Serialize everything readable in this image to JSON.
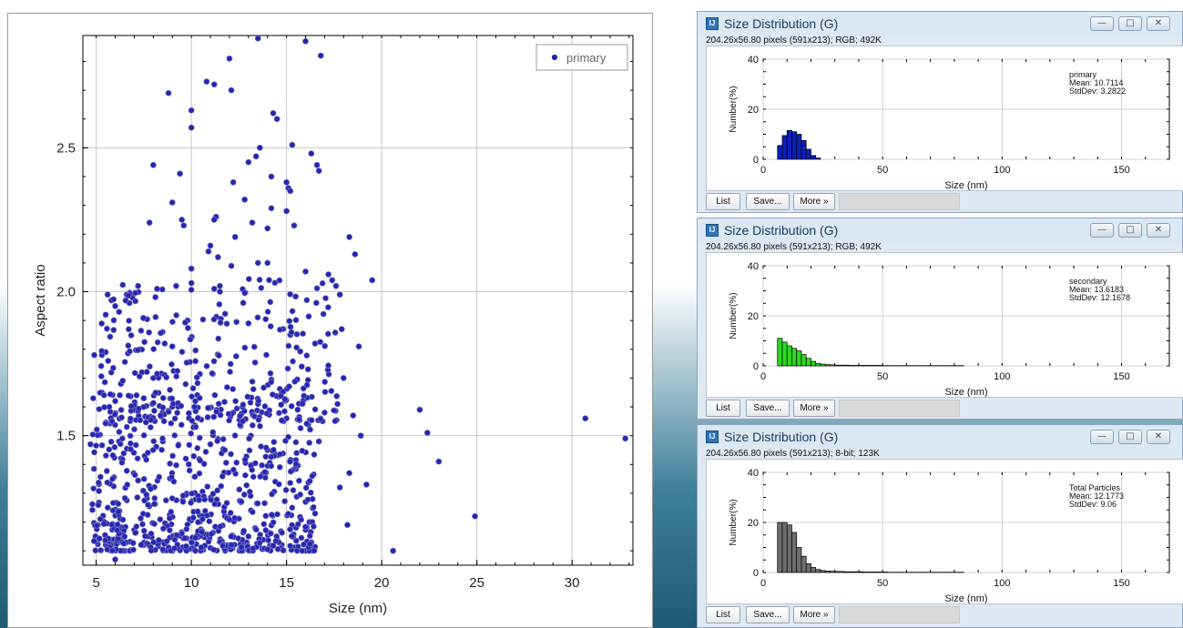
{
  "scatter": {
    "chart_data": {
      "type": "scatter",
      "title": "",
      "xlabel": "Size (nm)",
      "ylabel": "Aspect ratio",
      "xlim": [
        4.3,
        33.2
      ],
      "ylim": [
        1.05,
        2.89
      ],
      "x_ticks": [
        "5",
        "10",
        "15",
        "20",
        "25",
        "30"
      ],
      "x_tick_values": [
        5,
        10,
        15,
        20,
        25,
        30
      ],
      "y_ticks": [
        "1.5",
        "2.0",
        "2.5"
      ],
      "y_tick_values": [
        1.5,
        2.0,
        2.5
      ],
      "grid": true,
      "legend_position": "top-right",
      "series": [
        {
          "name": "primary",
          "color": "#2727b0",
          "points": [
            [
              13.5,
              2.88
            ],
            [
              16.0,
              2.87
            ],
            [
              16.8,
              2.82
            ],
            [
              12.0,
              2.81
            ],
            [
              11.2,
              2.72
            ],
            [
              10.8,
              2.73
            ],
            [
              12.1,
              2.7
            ],
            [
              8.8,
              2.69
            ],
            [
              14.3,
              2.62
            ],
            [
              14.5,
              2.6
            ],
            [
              10.0,
              2.63
            ],
            [
              10.0,
              2.57
            ],
            [
              15.3,
              2.51
            ],
            [
              13.6,
              2.5
            ],
            [
              16.3,
              2.48
            ],
            [
              13.4,
              2.47
            ],
            [
              13.0,
              2.45
            ],
            [
              8.0,
              2.44
            ],
            [
              16.6,
              2.44
            ],
            [
              16.7,
              2.42
            ],
            [
              9.4,
              2.41
            ],
            [
              14.2,
              2.4
            ],
            [
              12.2,
              2.38
            ],
            [
              15.0,
              2.38
            ],
            [
              15.1,
              2.36
            ],
            [
              15.2,
              2.35
            ],
            [
              12.8,
              2.32
            ],
            [
              9.0,
              2.31
            ],
            [
              14.2,
              2.29
            ],
            [
              15.0,
              2.28
            ],
            [
              11.3,
              2.26
            ],
            [
              11.2,
              2.25
            ],
            [
              9.5,
              2.25
            ],
            [
              9.6,
              2.23
            ],
            [
              13.2,
              2.24
            ],
            [
              7.8,
              2.24
            ],
            [
              15.4,
              2.23
            ],
            [
              14.0,
              2.22
            ],
            [
              12.3,
              2.19
            ],
            [
              18.3,
              2.19
            ],
            [
              11.0,
              2.16
            ],
            [
              10.9,
              2.14
            ],
            [
              11.4,
              2.12
            ],
            [
              18.6,
              2.13
            ],
            [
              14.0,
              2.1
            ],
            [
              13.5,
              2.1
            ],
            [
              12.1,
              2.09
            ],
            [
              10.0,
              2.08
            ],
            [
              16.0,
              2.07
            ],
            [
              17.2,
              2.06
            ],
            [
              17.4,
              2.04
            ],
            [
              19.5,
              2.04
            ],
            [
              10.0,
              2.03
            ],
            [
              7.2,
              2.02
            ],
            [
              9.2,
              2.02
            ],
            [
              17.6,
              2.02
            ],
            [
              8.2,
              2.01
            ],
            [
              11.2,
              2.01
            ],
            [
              11.5,
              2.0
            ],
            [
              17.8,
              1.99
            ],
            [
              5.6,
              1.99
            ],
            [
              6.6,
              1.99
            ],
            [
              6.9,
              1.98
            ],
            [
              5.8,
              1.97
            ],
            [
              6.0,
              1.95
            ],
            [
              6.2,
              1.93
            ],
            [
              5.5,
              1.92
            ],
            [
              9.8,
              1.9
            ],
            [
              13.0,
              1.89
            ],
            [
              17.9,
              1.87
            ],
            [
              15.2,
              1.85
            ],
            [
              16.5,
              1.82
            ],
            [
              8.6,
              1.82
            ],
            [
              9.0,
              1.81
            ],
            [
              18.8,
              1.81
            ],
            [
              7.3,
              1.8
            ],
            [
              5.5,
              1.79
            ],
            [
              5.3,
              1.78
            ],
            [
              4.9,
              1.78
            ],
            [
              15.8,
              1.74
            ],
            [
              7.4,
              1.72
            ],
            [
              8.0,
              1.7
            ],
            [
              18.0,
              1.7
            ],
            [
              6.3,
              1.68
            ],
            [
              5.3,
              1.65
            ],
            [
              6.0,
              1.62
            ],
            [
              7.5,
              1.63
            ],
            [
              9.0,
              1.6
            ],
            [
              13.5,
              1.61
            ],
            [
              12.2,
              1.58
            ],
            [
              17.0,
              1.58
            ],
            [
              18.5,
              1.57
            ],
            [
              15.0,
              1.56
            ],
            [
              22.0,
              1.59
            ],
            [
              22.4,
              1.51
            ],
            [
              30.7,
              1.56
            ],
            [
              32.8,
              1.49
            ],
            [
              23.0,
              1.41
            ],
            [
              18.9,
              1.5
            ],
            [
              16.7,
              1.48
            ],
            [
              14.0,
              1.45
            ],
            [
              11.0,
              1.47
            ],
            [
              8.5,
              1.48
            ],
            [
              6.2,
              1.48
            ],
            [
              4.7,
              1.47
            ],
            [
              19.2,
              1.33
            ],
            [
              18.3,
              1.37
            ],
            [
              17.8,
              1.32
            ],
            [
              16.0,
              1.27
            ],
            [
              24.9,
              1.22
            ],
            [
              18.2,
              1.19
            ],
            [
              20.6,
              1.1
            ],
            [
              5.0,
              1.14
            ],
            [
              5.5,
              1.12
            ],
            [
              6.5,
              1.1
            ],
            [
              7.5,
              1.12
            ],
            [
              8.5,
              1.13
            ],
            [
              9.0,
              1.1
            ],
            [
              10.0,
              1.13
            ],
            [
              11.0,
              1.11
            ],
            [
              12.0,
              1.12
            ],
            [
              13.0,
              1.15
            ],
            [
              14.5,
              1.14
            ],
            [
              15.5,
              1.18
            ],
            [
              16.2,
              1.2
            ],
            [
              6.0,
              1.07
            ]
          ]
        }
      ]
    }
  },
  "windows": [
    {
      "title": "Size Distribution (G)",
      "subtitle": "204.26x56.80 pixels (591x213); RGB; 492K",
      "buttons": {
        "list": "List",
        "save": "Save...",
        "more": "More »"
      },
      "chart_data": {
        "type": "bar",
        "xlabel": "Size (nm)",
        "ylabel": "Number(%)",
        "xlim": [
          0,
          170
        ],
        "ylim": [
          0,
          40
        ],
        "x_ticks": [
          "0",
          "50",
          "100",
          "150"
        ],
        "x_tick_values": [
          0,
          50,
          100,
          150
        ],
        "y_ticks": [
          "0",
          "20",
          "40"
        ],
        "y_tick_values": [
          0,
          20,
          40
        ],
        "bin_width": 2,
        "bin_start": 6,
        "values": [
          5.5,
          9.5,
          11.5,
          11.0,
          10.0,
          7.5,
          4.0,
          1.5,
          0.5
        ],
        "color": "#0a1fb8",
        "annotation": [
          "primary",
          "Mean: 10.7114",
          "StdDev: 3.2822"
        ]
      }
    },
    {
      "title": "Size Distribution (G)",
      "subtitle": "204.26x56.80 pixels (591x213); RGB; 492K",
      "buttons": {
        "list": "List",
        "save": "Save...",
        "more": "More »"
      },
      "chart_data": {
        "type": "bar",
        "xlabel": "Size (nm)",
        "ylabel": "Number(%)",
        "xlim": [
          0,
          170
        ],
        "ylim": [
          0,
          40
        ],
        "x_ticks": [
          "0",
          "50",
          "100",
          "150"
        ],
        "x_tick_values": [
          0,
          50,
          100,
          150
        ],
        "y_ticks": [
          "0",
          "20",
          "40"
        ],
        "y_tick_values": [
          0,
          20,
          40
        ],
        "bin_width": 2,
        "bin_start": 6,
        "values": [
          11.0,
          9.5,
          8.0,
          7.0,
          6.0,
          4.5,
          3.0,
          1.8,
          1.0,
          0.7,
          0.5,
          0.4,
          0.3,
          0.3,
          0.3,
          0.2,
          0.2,
          0.2,
          0.2,
          0.2,
          0.2,
          0.2,
          0.1,
          0.1,
          0.1,
          0.1,
          0.1,
          0.1,
          0.1,
          0.1,
          0.1,
          0.1,
          0.1,
          0.1,
          0.1,
          0.1,
          0.1,
          0.1,
          0.1
        ],
        "color": "#2bd81e",
        "annotation": [
          "secondary",
          "Mean: 13.6183",
          "StdDev: 12.1678"
        ]
      }
    },
    {
      "title": "Size Distribution (G)",
      "subtitle": "204.26x56.80 pixels (591x213); 8-bit; 123K",
      "buttons": {
        "list": "List",
        "save": "Save...",
        "more": "More »"
      },
      "chart_data": {
        "type": "bar",
        "xlabel": "Size (nm)",
        "ylabel": "Number(%)",
        "xlim": [
          0,
          170
        ],
        "ylim": [
          0,
          40
        ],
        "x_ticks": [
          "0",
          "50",
          "100",
          "150"
        ],
        "x_tick_values": [
          0,
          50,
          100,
          150
        ],
        "y_ticks": [
          "0",
          "20",
          "40"
        ],
        "y_tick_values": [
          0,
          20,
          40
        ],
        "bin_width": 2,
        "bin_start": 6,
        "values": [
          20.0,
          20.0,
          19.0,
          16.0,
          10.0,
          6.5,
          3.5,
          2.0,
          1.2,
          0.8,
          0.6,
          0.5,
          0.4,
          0.4,
          0.3,
          0.3,
          0.3,
          0.3,
          0.2,
          0.2,
          0.2,
          0.2,
          0.2,
          0.1,
          0.1,
          0.1,
          0.1,
          0.1,
          0.1,
          0.1,
          0.1,
          0.1,
          0.1,
          0.1,
          0.1,
          0.1,
          0.1,
          0.1,
          0.1
        ],
        "color": "#6e6e6e",
        "annotation": [
          "Total Particles",
          "Mean: 12.1773",
          "StdDev: 9.06"
        ]
      }
    }
  ]
}
